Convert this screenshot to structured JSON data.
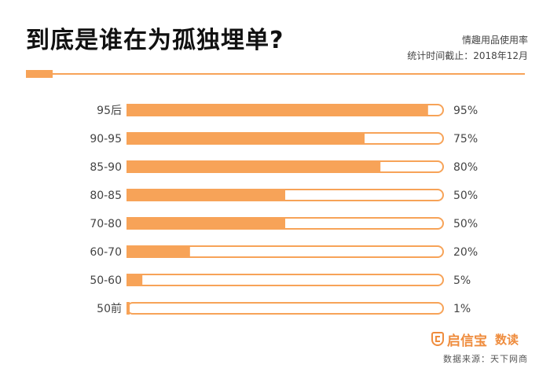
{
  "header": {
    "title": "到底是谁在为孤独埋单?",
    "subtitle": "情趣用品使用率",
    "date_note": "统计时间截止：2018年12月"
  },
  "footer": {
    "brand": "启信宝",
    "brand_suffix": "数读",
    "source": "数据来源：天下网商"
  },
  "colors": {
    "bar_fill": "#f7a358",
    "bar_border": "#f7a358",
    "accent": "#f7a358",
    "logo": "#ef8c3d"
  },
  "chart_data": {
    "type": "bar",
    "orientation": "horizontal",
    "title": "情趣用品使用率",
    "categories": [
      "95后",
      "90-95",
      "85-90",
      "80-85",
      "70-80",
      "60-70",
      "50-60",
      "50前"
    ],
    "values": [
      95,
      75,
      80,
      50,
      50,
      20,
      5,
      1
    ],
    "value_labels": [
      "95%",
      "75%",
      "80%",
      "50%",
      "50%",
      "20%",
      "5%",
      "1%"
    ],
    "xlim": [
      0,
      100
    ],
    "unit": "%"
  }
}
